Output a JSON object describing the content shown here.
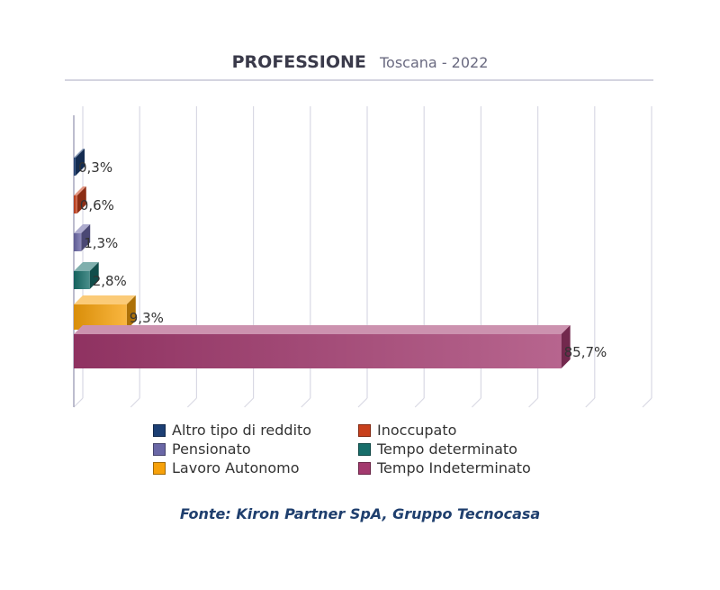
{
  "title": {
    "main": "PROFESSIONE",
    "sub": "Toscana - 2022"
  },
  "chart_data": {
    "type": "bar",
    "orientation": "horizontal",
    "style": "3d",
    "categories": [
      "Altro tipo di reddito",
      "Inoccupato",
      "Pensionato",
      "Tempo determinato",
      "Lavoro Autonomo",
      "Tempo Indeterminato"
    ],
    "values": [
      0.3,
      0.6,
      1.3,
      2.8,
      9.3,
      85.7
    ],
    "labels": [
      "0,3%",
      "0,6%",
      "1,3%",
      "2,8%",
      "9,3%",
      "85,7%"
    ],
    "colors": [
      "#1c3f74",
      "#c8401c",
      "#6a67a6",
      "#176e6a",
      "#f7a10a",
      "#a3396e"
    ],
    "xlim": [
      0,
      100
    ],
    "grid": true,
    "legend_position": "bottom"
  },
  "legend": {
    "items": [
      {
        "label": "Altro tipo di reddito",
        "color": "#1c3f74"
      },
      {
        "label": "Inoccupato",
        "color": "#c8401c"
      },
      {
        "label": "Pensionato",
        "color": "#6a67a6"
      },
      {
        "label": "Tempo determinato",
        "color": "#176e6a"
      },
      {
        "label": "Lavoro Autonomo",
        "color": "#f7a10a"
      },
      {
        "label": "Tempo Indeterminato",
        "color": "#a3396e"
      }
    ]
  },
  "source": "Fonte: Kiron Partner SpA, Gruppo Tecnocasa"
}
